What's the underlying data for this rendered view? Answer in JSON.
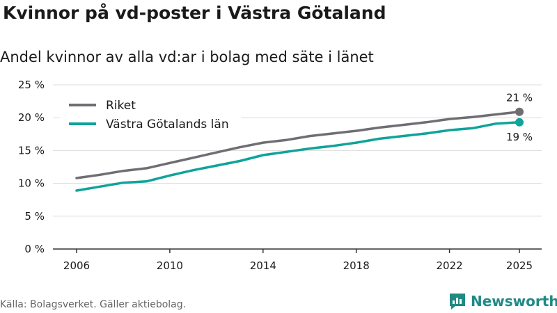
{
  "header": {
    "title": "Kvinnor på vd-poster i Västra Götaland",
    "subtitle": "Andel kvinnor av alla vd:ar i bolag med säte i länet"
  },
  "footer": {
    "source": "Källa: Bolagsverket. Gäller aktiebolag.",
    "brand": "Newsworthy",
    "brand_icon": "newsworthy-logo-icon"
  },
  "chart_data": {
    "type": "line",
    "title": "Kvinnor på vd-poster i Västra Götaland",
    "subtitle": "Andel kvinnor av alla vd:ar i bolag med säte i länet",
    "xlabel": "",
    "ylabel": "",
    "ylim": [
      0,
      25
    ],
    "xlim": [
      2006,
      2025
    ],
    "yticks": [
      0,
      5,
      10,
      15,
      20,
      25
    ],
    "ytick_labels": [
      "0 %",
      "5 %",
      "10 %",
      "15 %",
      "20 %",
      "25 %"
    ],
    "xticks": [
      2006,
      2010,
      2014,
      2018,
      2022,
      2025
    ],
    "xtick_labels": [
      "2006",
      "2010",
      "2014",
      "2018",
      "2022",
      "2025"
    ],
    "grid": true,
    "legend": "top-left",
    "x": [
      2006,
      2007,
      2008,
      2009,
      2010,
      2011,
      2012,
      2013,
      2014,
      2015,
      2016,
      2017,
      2018,
      2019,
      2020,
      2021,
      2022,
      2023,
      2024,
      2025
    ],
    "series": [
      {
        "name": "Riket",
        "color": "#6f6e73",
        "values": [
          10.8,
          11.3,
          11.9,
          12.3,
          13.1,
          13.9,
          14.7,
          15.5,
          16.2,
          16.6,
          17.2,
          17.6,
          18.0,
          18.5,
          18.9,
          19.3,
          19.8,
          20.1,
          20.5,
          20.9
        ],
        "end_label": "21 %"
      },
      {
        "name": "Västra Götalands län",
        "color": "#0fa39a",
        "values": [
          8.9,
          9.5,
          10.1,
          10.3,
          11.2,
          12.0,
          12.7,
          13.4,
          14.3,
          14.8,
          15.3,
          15.7,
          16.2,
          16.8,
          17.2,
          17.6,
          18.1,
          18.4,
          19.1,
          19.3
        ],
        "end_label": "19 %"
      }
    ]
  }
}
